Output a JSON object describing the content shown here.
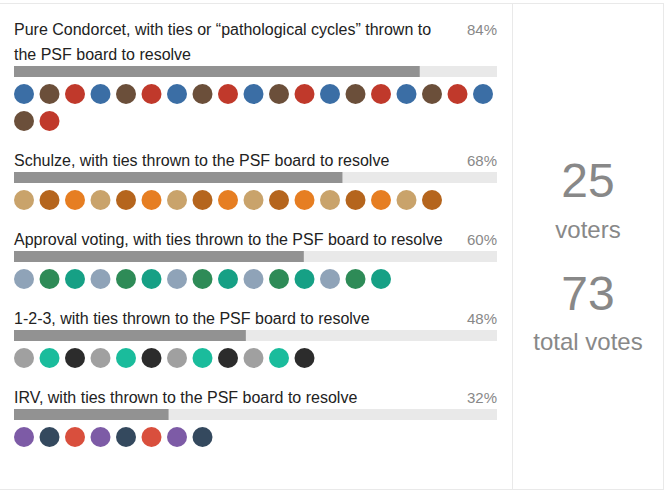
{
  "chart_data": {
    "type": "bar",
    "orientation": "horizontal",
    "categories": [
      "Pure Condorcet, with ties or “pathological cycles” thrown to the PSF board to resolve",
      "Schulze, with ties thrown to the PSF board to resolve",
      "Approval voting, with ties thrown to the PSF board to resolve",
      "1-2-3, with ties thrown to the PSF board to resolve",
      "IRV, with ties thrown to the PSF board to resolve"
    ],
    "values": [
      84,
      68,
      60,
      48,
      32
    ],
    "value_labels": [
      "84%",
      "68%",
      "60%",
      "48%",
      "32%"
    ],
    "data_labels": true,
    "tick_labels": false,
    "xlim": [
      0,
      100
    ],
    "color": "#929292",
    "stats": [
      {
        "value": 25,
        "label": "voters"
      },
      {
        "value": 73,
        "label": "total votes"
      }
    ]
  }
}
